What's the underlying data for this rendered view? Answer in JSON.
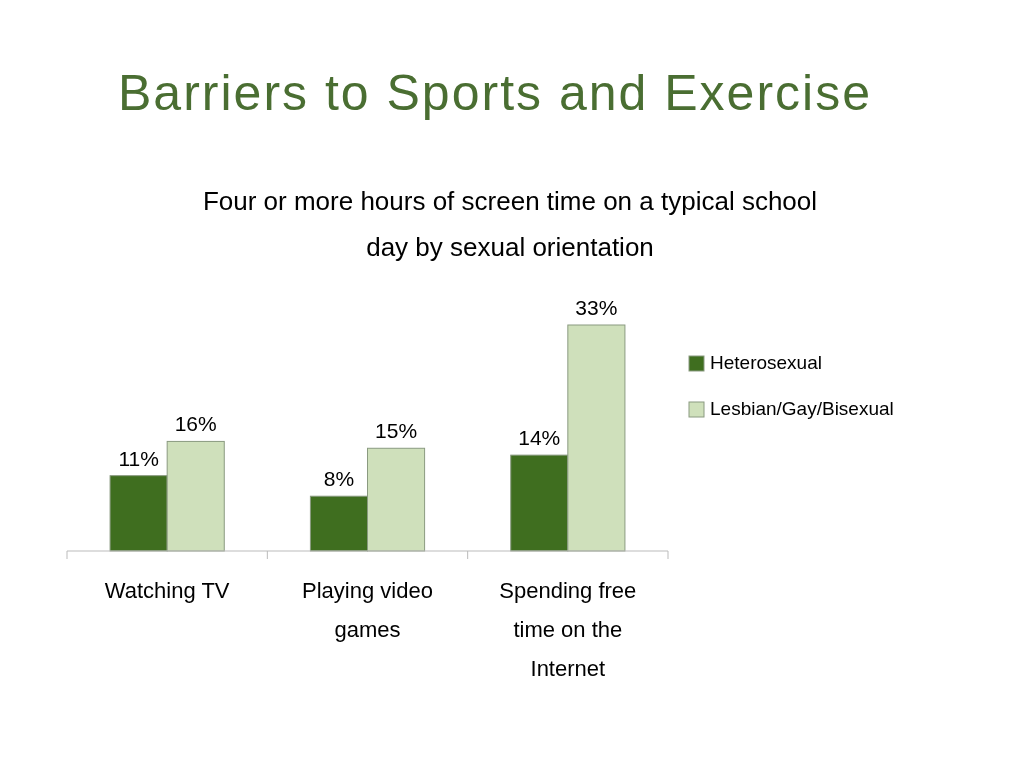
{
  "chart_data": {
    "type": "bar",
    "title": "Barriers to Sports and Exercise",
    "subtitle": "Four or more hours of screen time on a typical school day by sexual orientation",
    "categories": [
      "Watching TV",
      "Playing video games",
      "Spending free time on the Internet"
    ],
    "series": [
      {
        "name": "Heterosexual",
        "color": "#3f6e1f",
        "values": [
          11,
          8,
          14
        ],
        "value_labels": [
          "11%",
          "8%",
          "14%"
        ]
      },
      {
        "name": "Lesbian/Gay/Bisexual",
        "color": "#cfe0bb",
        "values": [
          16,
          15,
          33
        ],
        "value_labels": [
          "16%",
          "15%",
          "33%"
        ]
      }
    ],
    "legend": "right"
  }
}
